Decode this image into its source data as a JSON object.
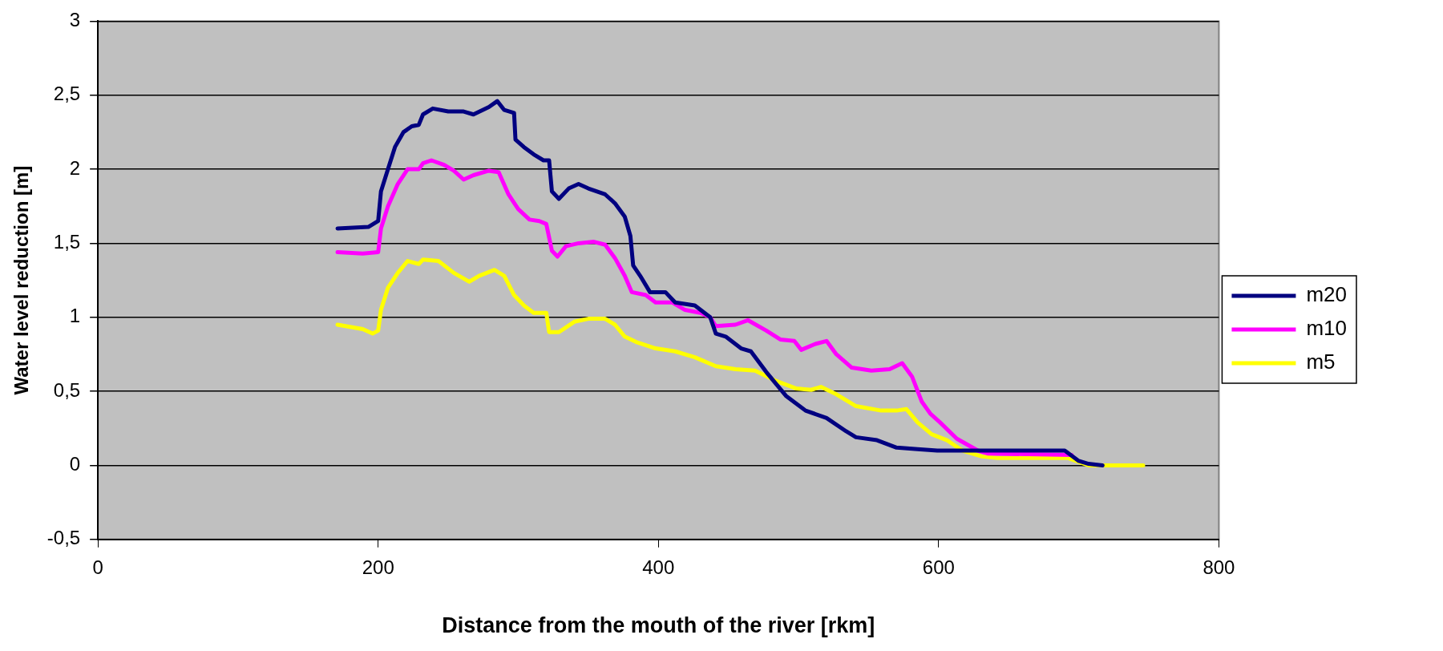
{
  "chart_data": {
    "type": "line",
    "xlabel": "Distance from the mouth of the river [rkm]",
    "ylabel": "Water level reduction [m]",
    "xlim": [
      0,
      800
    ],
    "xticks": [
      0,
      200,
      400,
      600,
      800
    ],
    "ylim": [
      -0.5,
      3
    ],
    "yticks": [
      {
        "value": -0.5,
        "label": "-0,5"
      },
      0,
      {
        "value": 0.5,
        "label": "0,5"
      },
      1,
      {
        "value": 1.5,
        "label": "1,5"
      },
      2,
      {
        "value": 2.5,
        "label": "2,5"
      },
      3
    ],
    "grid": "y",
    "legend": "right",
    "marker": "none",
    "line_style": "solid",
    "series": [
      {
        "name": "m20",
        "color": "#000080",
        "x": [
          171,
          193,
          200,
          202,
          207,
          212,
          218,
          224,
          229,
          232,
          239,
          250,
          261,
          268,
          279,
          285,
          290,
          297,
          298,
          304,
          311,
          318,
          322,
          324,
          329,
          336,
          343,
          350,
          362,
          369,
          376,
          380,
          382,
          387,
          394,
          405,
          412,
          426,
          437,
          441,
          448,
          459,
          466,
          477,
          491,
          505,
          520,
          534,
          541,
          556,
          570,
          585,
          599,
          690,
          700,
          707,
          717
        ],
        "values": [
          1.6,
          1.61,
          1.65,
          1.85,
          2.0,
          2.15,
          2.25,
          2.29,
          2.3,
          2.37,
          2.41,
          2.39,
          2.39,
          2.37,
          2.42,
          2.46,
          2.4,
          2.38,
          2.2,
          2.15,
          2.1,
          2.06,
          2.06,
          1.85,
          1.8,
          1.87,
          1.9,
          1.87,
          1.83,
          1.77,
          1.68,
          1.55,
          1.35,
          1.28,
          1.17,
          1.17,
          1.1,
          1.08,
          1.0,
          0.89,
          0.87,
          0.79,
          0.77,
          0.63,
          0.47,
          0.37,
          0.32,
          0.23,
          0.19,
          0.17,
          0.12,
          0.11,
          0.1,
          0.1,
          0.03,
          0.01,
          0.0
        ]
      },
      {
        "name": "m10",
        "color": "#ff00ff",
        "x": [
          171,
          189,
          200,
          202,
          207,
          214,
          221,
          229,
          232,
          238,
          247,
          254,
          261,
          268,
          279,
          286,
          293,
          300,
          308,
          315,
          320,
          324,
          328,
          334,
          343,
          354,
          362,
          369,
          376,
          381,
          391,
          398,
          410,
          419,
          430,
          437,
          441,
          455,
          464,
          477,
          487,
          497,
          502,
          512,
          520,
          527,
          538,
          552,
          565,
          574,
          581,
          588,
          594,
          601,
          613,
          628,
          635,
          695
        ],
        "values": [
          1.44,
          1.43,
          1.44,
          1.6,
          1.75,
          1.9,
          2.0,
          2.0,
          2.04,
          2.06,
          2.03,
          1.99,
          1.93,
          1.96,
          1.99,
          1.98,
          1.83,
          1.73,
          1.66,
          1.65,
          1.63,
          1.45,
          1.41,
          1.48,
          1.5,
          1.51,
          1.49,
          1.4,
          1.28,
          1.17,
          1.15,
          1.1,
          1.1,
          1.05,
          1.03,
          1.0,
          0.94,
          0.95,
          0.98,
          0.91,
          0.85,
          0.84,
          0.78,
          0.82,
          0.84,
          0.75,
          0.66,
          0.64,
          0.65,
          0.69,
          0.6,
          0.43,
          0.35,
          0.29,
          0.18,
          0.1,
          0.08,
          0.07
        ]
      },
      {
        "name": "m5",
        "color": "#ffff00",
        "x": [
          171,
          189,
          196,
          200,
          202,
          207,
          214,
          221,
          229,
          232,
          243,
          254,
          265,
          272,
          283,
          290,
          297,
          304,
          311,
          320,
          322,
          329,
          340,
          350,
          362,
          369,
          376,
          385,
          398,
          412,
          426,
          441,
          455,
          469,
          484,
          498,
          509,
          516,
          527,
          541,
          559,
          570,
          577,
          585,
          595,
          606,
          617,
          631,
          642,
          692,
          707,
          746
        ],
        "values": [
          0.95,
          0.92,
          0.89,
          0.91,
          1.05,
          1.2,
          1.3,
          1.38,
          1.36,
          1.39,
          1.38,
          1.3,
          1.24,
          1.28,
          1.32,
          1.28,
          1.15,
          1.08,
          1.03,
          1.03,
          0.9,
          0.9,
          0.97,
          0.99,
          0.99,
          0.95,
          0.87,
          0.83,
          0.79,
          0.77,
          0.73,
          0.67,
          0.65,
          0.64,
          0.57,
          0.52,
          0.51,
          0.53,
          0.48,
          0.4,
          0.37,
          0.37,
          0.38,
          0.29,
          0.21,
          0.17,
          0.1,
          0.06,
          0.05,
          0.05,
          0.0,
          0.0
        ]
      }
    ]
  }
}
